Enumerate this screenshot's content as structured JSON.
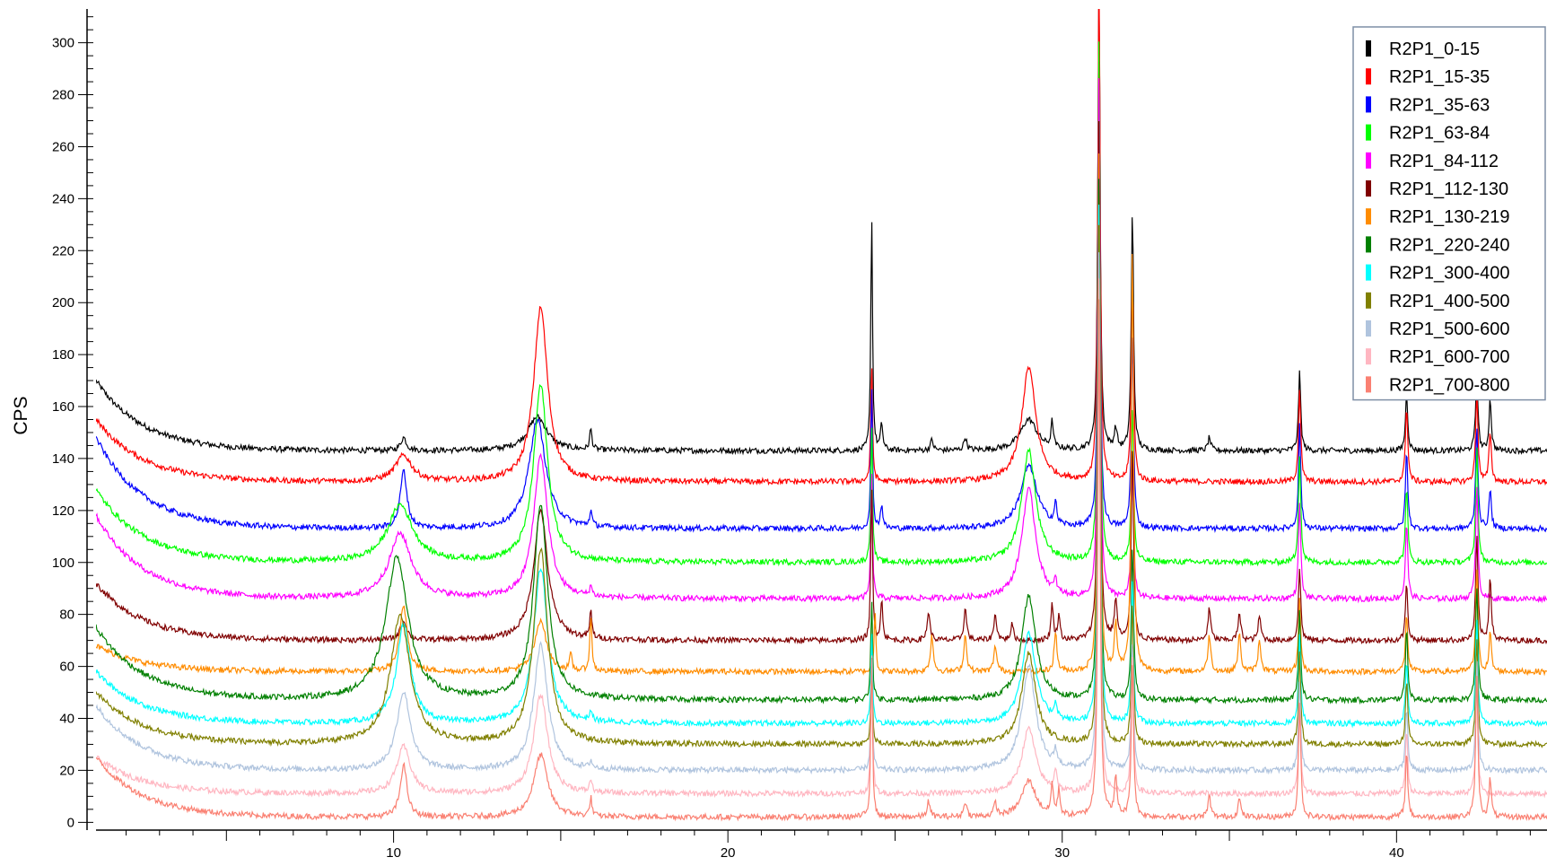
{
  "chart_data": {
    "type": "line",
    "ylabel": "CPS",
    "xlabel": "",
    "xlim": [
      1.1,
      44.5
    ],
    "ylim": [
      -3,
      313
    ],
    "x_ticks": [
      10,
      20,
      30,
      40
    ],
    "y_ticks": [
      0,
      20,
      40,
      60,
      80,
      100,
      120,
      140,
      160,
      180,
      200,
      220,
      240,
      260,
      280,
      300
    ],
    "grid": false,
    "legend_position": "top-right",
    "series": [
      {
        "name": "R2P1_0-15",
        "color": "#000000",
        "baseline": 143,
        "start": 170,
        "peaks": [
          [
            10.3,
            5,
            0.1
          ],
          [
            14.3,
            13,
            0.35
          ],
          [
            15.9,
            8,
            0.04
          ],
          [
            24.3,
            92,
            0.03
          ],
          [
            24.6,
            10,
            0.04
          ],
          [
            26.1,
            4,
            0.05
          ],
          [
            27.1,
            5,
            0.05
          ],
          [
            29.0,
            12,
            0.3
          ],
          [
            29.7,
            10,
            0.04
          ],
          [
            31.1,
            180,
            0.04
          ],
          [
            31.6,
            8,
            0.05
          ],
          [
            32.1,
            92,
            0.04
          ],
          [
            34.4,
            5,
            0.05
          ],
          [
            37.1,
            30,
            0.04
          ],
          [
            40.3,
            22,
            0.04
          ],
          [
            42.4,
            30,
            0.04
          ],
          [
            42.8,
            20,
            0.04
          ]
        ]
      },
      {
        "name": "R2P1_15-35",
        "color": "#ff0000",
        "baseline": 131,
        "start": 155,
        "peaks": [
          [
            10.3,
            10,
            0.3
          ],
          [
            14.4,
            67,
            0.25
          ],
          [
            24.3,
            45,
            0.03
          ],
          [
            29.0,
            44,
            0.25
          ],
          [
            31.1,
            200,
            0.04
          ],
          [
            32.1,
            80,
            0.04
          ],
          [
            37.1,
            36,
            0.04
          ],
          [
            40.3,
            30,
            0.04
          ],
          [
            42.4,
            35,
            0.04
          ],
          [
            42.8,
            20,
            0.04
          ]
        ]
      },
      {
        "name": "R2P1_35-63",
        "color": "#0000ff",
        "baseline": 113,
        "start": 148,
        "peaks": [
          [
            10.3,
            22,
            0.12
          ],
          [
            14.3,
            42,
            0.3
          ],
          [
            15.9,
            6,
            0.04
          ],
          [
            24.3,
            55,
            0.03
          ],
          [
            24.6,
            9,
            0.04
          ],
          [
            29.0,
            24,
            0.3
          ],
          [
            29.8,
            8,
            0.04
          ],
          [
            31.1,
            180,
            0.04
          ],
          [
            32.1,
            75,
            0.04
          ],
          [
            37.1,
            40,
            0.04
          ],
          [
            40.3,
            30,
            0.04
          ],
          [
            42.4,
            40,
            0.04
          ],
          [
            42.8,
            15,
            0.04
          ]
        ]
      },
      {
        "name": "R2P1_63-84",
        "color": "#00ff00",
        "baseline": 100,
        "start": 128,
        "peaks": [
          [
            10.2,
            22,
            0.45
          ],
          [
            14.4,
            68,
            0.25
          ],
          [
            24.3,
            55,
            0.03
          ],
          [
            29.0,
            43,
            0.25
          ],
          [
            31.1,
            200,
            0.04
          ],
          [
            32.1,
            60,
            0.04
          ],
          [
            37.1,
            42,
            0.04
          ],
          [
            40.3,
            30,
            0.04
          ],
          [
            42.4,
            45,
            0.04
          ]
        ]
      },
      {
        "name": "R2P1_84-112",
        "color": "#ff00ff",
        "baseline": 86,
        "start": 118,
        "peaks": [
          [
            10.2,
            25,
            0.4
          ],
          [
            14.4,
            55,
            0.25
          ],
          [
            15.9,
            4,
            0.04
          ],
          [
            24.3,
            50,
            0.03
          ],
          [
            29.0,
            42,
            0.25
          ],
          [
            29.8,
            5,
            0.04
          ],
          [
            31.1,
            200,
            0.04
          ],
          [
            32.1,
            55,
            0.04
          ],
          [
            37.1,
            38,
            0.04
          ],
          [
            40.3,
            30,
            0.04
          ],
          [
            42.4,
            45,
            0.04
          ]
        ]
      },
      {
        "name": "R2P1_112-130",
        "color": "#800000",
        "baseline": 70,
        "start": 92,
        "peaks": [
          [
            10.3,
            7,
            0.12
          ],
          [
            14.4,
            50,
            0.25
          ],
          [
            15.9,
            10,
            0.04
          ],
          [
            24.3,
            60,
            0.03
          ],
          [
            24.6,
            15,
            0.04
          ],
          [
            26.0,
            11,
            0.05
          ],
          [
            27.1,
            12,
            0.05
          ],
          [
            28.0,
            10,
            0.05
          ],
          [
            28.5,
            6,
            0.05
          ],
          [
            29.7,
            14,
            0.04
          ],
          [
            29.9,
            10,
            0.04
          ],
          [
            31.1,
            200,
            0.04
          ],
          [
            31.6,
            15,
            0.05
          ],
          [
            32.1,
            75,
            0.04
          ],
          [
            34.4,
            12,
            0.05
          ],
          [
            35.3,
            10,
            0.05
          ],
          [
            35.9,
            9,
            0.05
          ],
          [
            37.1,
            28,
            0.04
          ],
          [
            40.3,
            22,
            0.04
          ],
          [
            42.4,
            40,
            0.04
          ],
          [
            42.8,
            25,
            0.04
          ]
        ]
      },
      {
        "name": "R2P1_130-219",
        "color": "#ff8c00",
        "baseline": 58,
        "start": 68,
        "peaks": [
          [
            10.3,
            25,
            0.14
          ],
          [
            14.4,
            20,
            0.2
          ],
          [
            15.3,
            6,
            0.04
          ],
          [
            15.9,
            20,
            0.04
          ],
          [
            24.4,
            25,
            0.03
          ],
          [
            26.1,
            14,
            0.05
          ],
          [
            27.1,
            14,
            0.05
          ],
          [
            28.0,
            10,
            0.05
          ],
          [
            29.8,
            15,
            0.05
          ],
          [
            31.1,
            200,
            0.04
          ],
          [
            31.6,
            18,
            0.05
          ],
          [
            32.1,
            165,
            0.04
          ],
          [
            34.4,
            14,
            0.05
          ],
          [
            35.3,
            14,
            0.05
          ],
          [
            35.9,
            12,
            0.05
          ],
          [
            37.1,
            28,
            0.04
          ],
          [
            40.3,
            22,
            0.04
          ],
          [
            42.4,
            40,
            0.04
          ],
          [
            42.8,
            15,
            0.04
          ]
        ]
      },
      {
        "name": "R2P1_220-240",
        "color": "#008000",
        "baseline": 47,
        "start": 75,
        "peaks": [
          [
            10.1,
            55,
            0.4
          ],
          [
            14.4,
            75,
            0.25
          ],
          [
            24.3,
            40,
            0.03
          ],
          [
            29.0,
            40,
            0.25
          ],
          [
            31.1,
            200,
            0.04
          ],
          [
            32.1,
            60,
            0.04
          ],
          [
            37.1,
            35,
            0.04
          ],
          [
            40.3,
            28,
            0.04
          ],
          [
            42.4,
            45,
            0.04
          ]
        ]
      },
      {
        "name": "R2P1_300-400",
        "color": "#00ffff",
        "baseline": 38,
        "start": 58,
        "peaks": [
          [
            10.3,
            38,
            0.25
          ],
          [
            14.4,
            60,
            0.25
          ],
          [
            15.9,
            4,
            0.04
          ],
          [
            24.3,
            35,
            0.03
          ],
          [
            29.0,
            35,
            0.25
          ],
          [
            29.8,
            6,
            0.05
          ],
          [
            31.1,
            200,
            0.04
          ],
          [
            32.1,
            55,
            0.04
          ],
          [
            37.1,
            35,
            0.04
          ],
          [
            40.3,
            25,
            0.04
          ],
          [
            42.4,
            42,
            0.04
          ]
        ]
      },
      {
        "name": "R2P1_400-500",
        "color": "#808000",
        "baseline": 30,
        "start": 50,
        "peaks": [
          [
            10.2,
            50,
            0.35
          ],
          [
            14.4,
            75,
            0.25
          ],
          [
            24.3,
            30,
            0.03
          ],
          [
            29.0,
            35,
            0.25
          ],
          [
            31.1,
            200,
            0.04
          ],
          [
            32.1,
            55,
            0.04
          ],
          [
            37.1,
            35,
            0.04
          ],
          [
            40.3,
            25,
            0.04
          ],
          [
            42.4,
            42,
            0.04
          ]
        ]
      },
      {
        "name": "R2P1_500-600",
        "color": "#b0c4de",
        "baseline": 20,
        "start": 45,
        "peaks": [
          [
            10.3,
            30,
            0.25
          ],
          [
            14.4,
            48,
            0.25
          ],
          [
            15.9,
            3,
            0.04
          ],
          [
            24.3,
            40,
            0.03
          ],
          [
            29.0,
            40,
            0.25
          ],
          [
            29.8,
            6,
            0.05
          ],
          [
            31.1,
            200,
            0.04
          ],
          [
            32.1,
            50,
            0.04
          ],
          [
            37.1,
            35,
            0.04
          ],
          [
            40.3,
            25,
            0.04
          ],
          [
            42.4,
            42,
            0.04
          ]
        ]
      },
      {
        "name": "R2P1_600-700",
        "color": "#ffb6c1",
        "baseline": 11,
        "start": 25,
        "peaks": [
          [
            10.3,
            18,
            0.25
          ],
          [
            14.4,
            38,
            0.25
          ],
          [
            15.9,
            5,
            0.04
          ],
          [
            24.3,
            55,
            0.03
          ],
          [
            29.0,
            25,
            0.25
          ],
          [
            29.8,
            8,
            0.05
          ],
          [
            31.1,
            200,
            0.04
          ],
          [
            32.1,
            55,
            0.04
          ],
          [
            37.1,
            35,
            0.04
          ],
          [
            40.3,
            25,
            0.04
          ],
          [
            42.4,
            42,
            0.04
          ]
        ]
      },
      {
        "name": "R2P1_700-800",
        "color": "#fa8072",
        "baseline": 2,
        "start": 25,
        "peaks": [
          [
            10.3,
            20,
            0.12
          ],
          [
            14.4,
            24,
            0.25
          ],
          [
            15.9,
            7,
            0.04
          ],
          [
            24.3,
            65,
            0.03
          ],
          [
            26.0,
            6,
            0.05
          ],
          [
            27.1,
            6,
            0.05
          ],
          [
            28.0,
            5,
            0.05
          ],
          [
            29.0,
            14,
            0.25
          ],
          [
            29.7,
            12,
            0.04
          ],
          [
            29.9,
            10,
            0.04
          ],
          [
            31.1,
            200,
            0.04
          ],
          [
            31.6,
            14,
            0.05
          ],
          [
            32.1,
            60,
            0.04
          ],
          [
            34.4,
            8,
            0.05
          ],
          [
            35.3,
            7,
            0.05
          ],
          [
            37.1,
            45,
            0.04
          ],
          [
            40.3,
            25,
            0.04
          ],
          [
            42.4,
            55,
            0.04
          ],
          [
            42.8,
            15,
            0.04
          ]
        ]
      }
    ]
  }
}
